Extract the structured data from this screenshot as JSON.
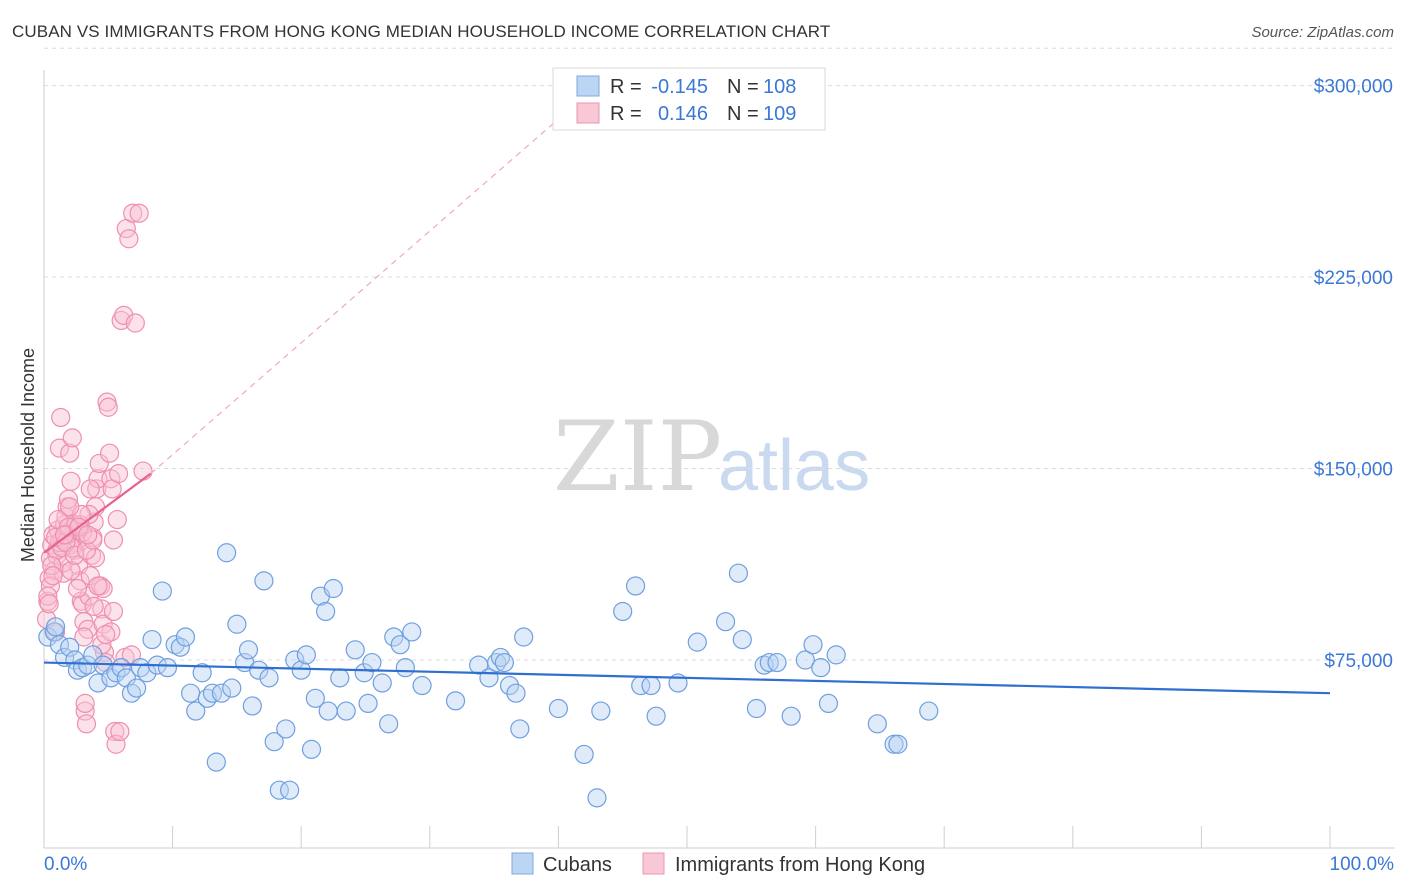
{
  "header": {
    "title": "CUBAN VS IMMIGRANTS FROM HONG KONG MEDIAN HOUSEHOLD INCOME CORRELATION CHART",
    "source": "Source: ZipAtlas.com"
  },
  "watermark": {
    "zip": "ZIP",
    "atlas": "atlas"
  },
  "legend": {
    "rows": [
      {
        "r_label": "R =",
        "r_value": "-0.145",
        "n_label": "N =",
        "n_value": "108",
        "color": "#a9c8f0"
      },
      {
        "r_label": "R =",
        "r_value": "0.146",
        "n_label": "N =",
        "n_value": "109",
        "color": "#f7b6c9"
      }
    ]
  },
  "bottom_legend": {
    "cubans": "Cubans",
    "hongkong": "Immigrants from Hong Kong"
  },
  "chart_data": {
    "type": "scatter",
    "title": "CUBAN VS IMMIGRANTS FROM HONG KONG MEDIAN HOUSEHOLD INCOME CORRELATION CHART",
    "xlabel": "",
    "ylabel": "Median Household Income",
    "xlim": [
      0,
      100
    ],
    "ylim": [
      10000,
      315000
    ],
    "x_tick_labels": [
      "0.0%",
      "100.0%"
    ],
    "y_ticks": [
      75000,
      150000,
      225000,
      300000
    ],
    "y_tick_labels": [
      "$75,000",
      "$150,000",
      "$225,000",
      "$300,000"
    ],
    "grid": true,
    "legend_position": "top-center",
    "colors": {
      "cubans": "#5b93db",
      "hongkong": "#f08cab",
      "cubans_line": "#2f6fcf",
      "hongkong_line": "#e8618c"
    },
    "series": [
      {
        "name": "Cubans",
        "trend": {
          "x": [
            0,
            100
          ],
          "y": [
            74000,
            62000
          ]
        },
        "points": [
          [
            0.3,
            84
          ],
          [
            0.8,
            86
          ],
          [
            1.2,
            81
          ],
          [
            1.6,
            76
          ],
          [
            2.0,
            80
          ],
          [
            2.4,
            75
          ],
          [
            2.6,
            71
          ],
          [
            3.0,
            72
          ],
          [
            3.4,
            73
          ],
          [
            3.8,
            77
          ],
          [
            4.2,
            66
          ],
          [
            4.6,
            73
          ],
          [
            5.2,
            68
          ],
          [
            5.6,
            70
          ],
          [
            6.0,
            72
          ],
          [
            6.4,
            68
          ],
          [
            6.8,
            62
          ],
          [
            7.2,
            64
          ],
          [
            7.5,
            72
          ],
          [
            8.0,
            70
          ],
          [
            8.4,
            83
          ],
          [
            8.8,
            73
          ],
          [
            9.2,
            102
          ],
          [
            9.6,
            72
          ],
          [
            10.2,
            81
          ],
          [
            10.6,
            80
          ],
          [
            11.0,
            84
          ],
          [
            11.4,
            62
          ],
          [
            11.8,
            55
          ],
          [
            12.3,
            70
          ],
          [
            12.7,
            60
          ],
          [
            13.1,
            62
          ],
          [
            13.4,
            35
          ],
          [
            13.8,
            62
          ],
          [
            14.2,
            117
          ],
          [
            14.6,
            64
          ],
          [
            15.0,
            89
          ],
          [
            15.6,
            74
          ],
          [
            15.9,
            79
          ],
          [
            16.2,
            57
          ],
          [
            16.7,
            71
          ],
          [
            17.1,
            106
          ],
          [
            17.5,
            68
          ],
          [
            17.9,
            43
          ],
          [
            18.3,
            24
          ],
          [
            18.8,
            48
          ],
          [
            19.1,
            24
          ],
          [
            19.5,
            75
          ],
          [
            20.0,
            71
          ],
          [
            20.4,
            77
          ],
          [
            20.8,
            40
          ],
          [
            21.1,
            60
          ],
          [
            21.5,
            100
          ],
          [
            21.9,
            94
          ],
          [
            22.1,
            55
          ],
          [
            22.5,
            103
          ],
          [
            23.0,
            68
          ],
          [
            23.5,
            55
          ],
          [
            24.2,
            79
          ],
          [
            24.9,
            70
          ],
          [
            25.2,
            58
          ],
          [
            25.5,
            74
          ],
          [
            26.3,
            66
          ],
          [
            26.8,
            50
          ],
          [
            27.2,
            84
          ],
          [
            27.7,
            81
          ],
          [
            28.1,
            72
          ],
          [
            28.6,
            86
          ],
          [
            29.4,
            65
          ],
          [
            32.0,
            59
          ],
          [
            33.8,
            73
          ],
          [
            34.6,
            68
          ],
          [
            35.2,
            74
          ],
          [
            35.5,
            76
          ],
          [
            35.8,
            74
          ],
          [
            36.2,
            65
          ],
          [
            36.7,
            62
          ],
          [
            37.0,
            48
          ],
          [
            37.3,
            84
          ],
          [
            40.0,
            56
          ],
          [
            42.0,
            38
          ],
          [
            43.0,
            21
          ],
          [
            43.3,
            55
          ],
          [
            45.0,
            94
          ],
          [
            46.0,
            104
          ],
          [
            46.4,
            65
          ],
          [
            47.2,
            65
          ],
          [
            47.6,
            53
          ],
          [
            49.3,
            66
          ],
          [
            50.8,
            82
          ],
          [
            53.0,
            90
          ],
          [
            54.0,
            109
          ],
          [
            54.3,
            83
          ],
          [
            55.4,
            56
          ],
          [
            56.0,
            73
          ],
          [
            56.4,
            74
          ],
          [
            57.0,
            74
          ],
          [
            58.1,
            53
          ],
          [
            59.2,
            75
          ],
          [
            59.8,
            81
          ],
          [
            60.4,
            72
          ],
          [
            61.0,
            58
          ],
          [
            61.6,
            77
          ],
          [
            64.8,
            50
          ],
          [
            66.1,
            42
          ],
          [
            66.4,
            42
          ],
          [
            68.8,
            55
          ],
          [
            0.9,
            88
          ]
        ]
      },
      {
        "name": "Immigrants from Hong Kong",
        "trend": {
          "x": [
            0,
            8.3
          ],
          "y": [
            117000,
            148000
          ]
        },
        "trend_extension": {
          "x": [
            8.3,
            43
          ],
          "y": [
            148000,
            300000
          ]
        },
        "points": [
          [
            0.2,
            91
          ],
          [
            0.3,
            98
          ],
          [
            0.4,
            107
          ],
          [
            0.5,
            115
          ],
          [
            0.6,
            120
          ],
          [
            0.7,
            124
          ],
          [
            0.8,
            110
          ],
          [
            0.9,
            86
          ],
          [
            1.0,
            116
          ],
          [
            1.1,
            126
          ],
          [
            1.2,
            158
          ],
          [
            1.3,
            170
          ],
          [
            1.4,
            122
          ],
          [
            1.5,
            109
          ],
          [
            1.6,
            128
          ],
          [
            1.7,
            131
          ],
          [
            1.8,
            135
          ],
          [
            1.9,
            138
          ],
          [
            2.0,
            156
          ],
          [
            2.1,
            145
          ],
          [
            2.2,
            162
          ],
          [
            2.3,
            125
          ],
          [
            2.4,
            118
          ],
          [
            2.5,
            121
          ],
          [
            2.6,
            126
          ],
          [
            2.7,
            112
          ],
          [
            2.8,
            106
          ],
          [
            2.9,
            98
          ],
          [
            3.0,
            97
          ],
          [
            3.1,
            90
          ],
          [
            3.2,
            55
          ],
          [
            3.3,
            50
          ],
          [
            3.4,
            87
          ],
          [
            3.5,
            100
          ],
          [
            3.6,
            108
          ],
          [
            3.7,
            116
          ],
          [
            3.8,
            123
          ],
          [
            3.9,
            129
          ],
          [
            4.0,
            135
          ],
          [
            4.1,
            142
          ],
          [
            4.2,
            146
          ],
          [
            4.3,
            152
          ],
          [
            4.4,
            104
          ],
          [
            4.5,
            95
          ],
          [
            4.6,
            89
          ],
          [
            4.7,
            78
          ],
          [
            4.8,
            74
          ],
          [
            4.9,
            176
          ],
          [
            5.0,
            174
          ],
          [
            5.1,
            156
          ],
          [
            5.2,
            146
          ],
          [
            5.3,
            142
          ],
          [
            5.4,
            122
          ],
          [
            5.5,
            47
          ],
          [
            5.6,
            42
          ],
          [
            5.7,
            130
          ],
          [
            5.8,
            148
          ],
          [
            6.0,
            208
          ],
          [
            6.2,
            210
          ],
          [
            6.4,
            244
          ],
          [
            6.6,
            240
          ],
          [
            6.9,
            250
          ],
          [
            7.1,
            207
          ],
          [
            7.4,
            250
          ],
          [
            7.7,
            149
          ],
          [
            3.0,
            125
          ],
          [
            2.0,
            120
          ],
          [
            1.5,
            113
          ],
          [
            2.5,
            128
          ],
          [
            3.5,
            132
          ],
          [
            1.0,
            118
          ],
          [
            0.5,
            104
          ],
          [
            4.0,
            115
          ],
          [
            0.3,
            100
          ],
          [
            0.6,
            112
          ],
          [
            2.2,
            119
          ],
          [
            1.8,
            124
          ],
          [
            1.2,
            121
          ],
          [
            3.2,
            58
          ],
          [
            4.5,
            81
          ],
          [
            0.7,
            108
          ],
          [
            1.4,
            119
          ],
          [
            2.8,
            128
          ],
          [
            3.6,
            142
          ],
          [
            0.9,
            123
          ],
          [
            1.7,
            121
          ],
          [
            2.1,
            110
          ],
          [
            2.6,
            103
          ],
          [
            3.1,
            84
          ],
          [
            3.9,
            96
          ],
          [
            4.6,
            103
          ],
          [
            5.2,
            86
          ],
          [
            5.9,
            47
          ],
          [
            6.3,
            76
          ],
          [
            6.8,
            77
          ],
          [
            0.4,
            97
          ],
          [
            1.1,
            130
          ],
          [
            1.9,
            127
          ],
          [
            2.4,
            116
          ],
          [
            2.9,
            132
          ],
          [
            3.3,
            118
          ],
          [
            3.8,
            122
          ],
          [
            4.2,
            104
          ],
          [
            4.8,
            85
          ],
          [
            5.4,
            94
          ],
          [
            1.6,
            124
          ],
          [
            2.0,
            135
          ],
          [
            2.7,
            127
          ],
          [
            3.4,
            124
          ]
        ]
      }
    ]
  }
}
